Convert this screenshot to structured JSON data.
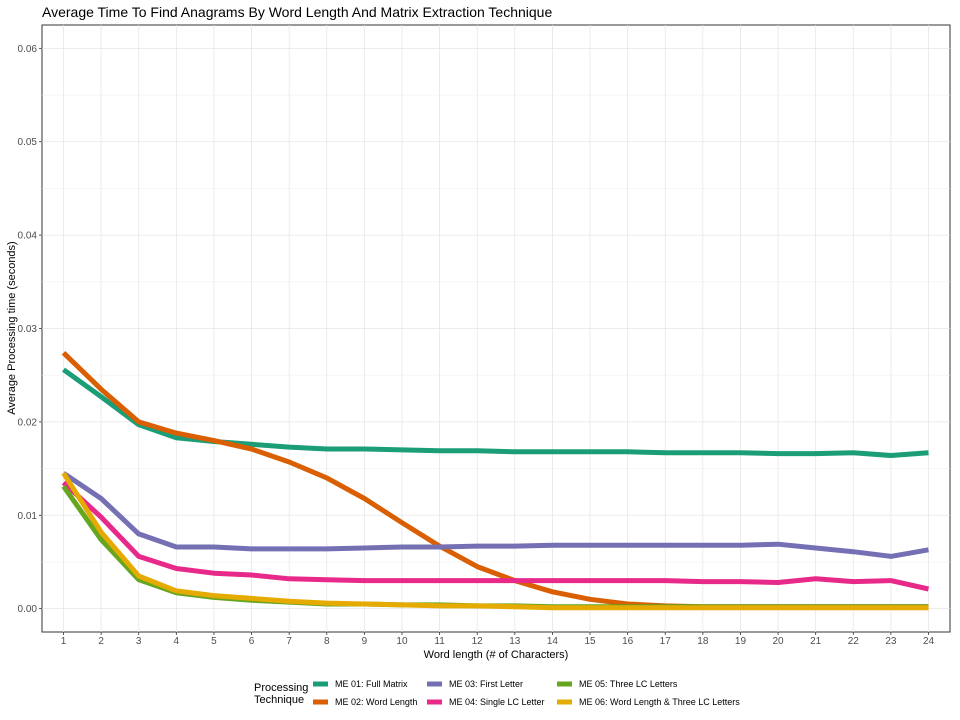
{
  "chart_data": {
    "type": "line",
    "title": "Average Time To Find Anagrams By Word Length And Matrix Extraction Technique",
    "xlabel": "Word length (# of Characters)",
    "ylabel": "Average Processing time (seconds)",
    "xlim": [
      1,
      24
    ],
    "ylim": [
      -0.0025,
      0.0625
    ],
    "x": [
      1,
      2,
      3,
      4,
      5,
      6,
      7,
      8,
      9,
      10,
      11,
      12,
      13,
      14,
      15,
      16,
      17,
      18,
      19,
      20,
      21,
      22,
      23,
      24
    ],
    "x_ticks": [
      "1",
      "2",
      "3",
      "4",
      "5",
      "6",
      "7",
      "8",
      "9",
      "10",
      "11",
      "12",
      "13",
      "14",
      "15",
      "16",
      "17",
      "18",
      "19",
      "20",
      "21",
      "22",
      "23",
      "24"
    ],
    "y_ticks": [
      {
        "value": 0.0,
        "label": "0.00"
      },
      {
        "value": 0.01,
        "label": "0.01"
      },
      {
        "value": 0.02,
        "label": "0.02"
      },
      {
        "value": 0.03,
        "label": "0.03"
      },
      {
        "value": 0.04,
        "label": "0.04"
      },
      {
        "value": 0.05,
        "label": "0.05"
      },
      {
        "value": 0.06,
        "label": "0.06"
      }
    ],
    "grid": true,
    "legend": {
      "position": "bottom",
      "title_lines": [
        "Processing",
        "Technique"
      ]
    },
    "series": [
      {
        "name": "ME 01: Full Matrix",
        "color": "#1b9e77",
        "values": [
          0.0256,
          0.0227,
          0.0197,
          0.0183,
          0.0179,
          0.0176,
          0.0173,
          0.0171,
          0.0171,
          0.017,
          0.0169,
          0.0169,
          0.0168,
          0.0168,
          0.0168,
          0.0168,
          0.0167,
          0.0167,
          0.0167,
          0.0166,
          0.0166,
          0.0167,
          0.0164,
          0.0167
        ]
      },
      {
        "name": "ME 02: Word Length",
        "color": "#d95f02",
        "values": [
          0.0274,
          0.0235,
          0.02,
          0.0188,
          0.018,
          0.0171,
          0.0157,
          0.014,
          0.0118,
          0.0092,
          0.0067,
          0.0045,
          0.003,
          0.0018,
          0.001,
          0.0005,
          0.0003,
          0.0002,
          0.0002,
          0.0002,
          0.0002,
          0.0002,
          0.0002,
          0.0002
        ]
      },
      {
        "name": "ME 03: First Letter",
        "color": "#7570b3",
        "values": [
          0.0145,
          0.0118,
          0.008,
          0.0066,
          0.0066,
          0.0064,
          0.0064,
          0.0064,
          0.0065,
          0.0066,
          0.0066,
          0.0067,
          0.0067,
          0.0068,
          0.0068,
          0.0068,
          0.0068,
          0.0068,
          0.0068,
          0.0069,
          0.0065,
          0.0061,
          0.0056,
          0.0063
        ]
      },
      {
        "name": "ME 04: Single LC Letter",
        "color": "#e7298a",
        "values": [
          0.0135,
          0.0098,
          0.0056,
          0.0043,
          0.0038,
          0.0036,
          0.0032,
          0.0031,
          0.003,
          0.003,
          0.003,
          0.003,
          0.003,
          0.003,
          0.003,
          0.003,
          0.003,
          0.0029,
          0.0029,
          0.0028,
          0.0032,
          0.0029,
          0.003,
          0.0021
        ]
      },
      {
        "name": "ME 05: Three LC Letters",
        "color": "#66a61e",
        "values": [
          0.0131,
          0.0074,
          0.0031,
          0.0017,
          0.0012,
          0.0009,
          0.0007,
          0.0005,
          0.0005,
          0.0004,
          0.0004,
          0.0003,
          0.0003,
          0.0002,
          0.0002,
          0.0002,
          0.0002,
          0.0002,
          0.0002,
          0.0002,
          0.0002,
          0.0002,
          0.0002,
          0.0002
        ]
      },
      {
        "name": "ME 06: Word Length & Three LC Letters",
        "color": "#e6ab02",
        "values": [
          0.0145,
          0.0082,
          0.0035,
          0.0019,
          0.0014,
          0.0011,
          0.0008,
          0.0006,
          0.0005,
          0.0004,
          0.0003,
          0.0003,
          0.0002,
          0.0001,
          0.0001,
          0.0001,
          0.0001,
          0.0001,
          0.0001,
          0.0001,
          0.0001,
          0.0001,
          0.0001,
          0.0001
        ]
      }
    ]
  }
}
